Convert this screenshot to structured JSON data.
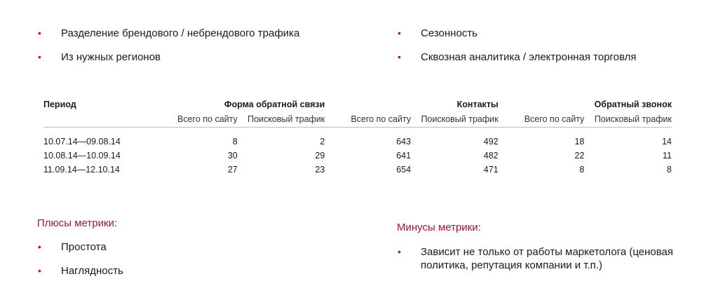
{
  "top_left_bullets": [
    "Разделение брендового / небрендового трафика",
    "Из нужных регионов"
  ],
  "top_right_bullets": [
    "Сезонность",
    "Сквозная аналитика / электронная торговля"
  ],
  "table": {
    "period_header": "Период",
    "groups": [
      "Форма обратной связи",
      "Контакты",
      "Обратный звонок"
    ],
    "sub_headers": [
      "Всего по сайту",
      "Поисковый трафик",
      "Всего по сайту",
      "Поисковый трафик",
      "Всего по сайту",
      "Поисковый трафик"
    ],
    "rows": [
      {
        "period": "10.07.14—09.08.14",
        "values": [
          "8",
          "2",
          "643",
          "492",
          "18",
          "14"
        ]
      },
      {
        "period": "10.08.14—10.09.14",
        "values": [
          "30",
          "29",
          "641",
          "482",
          "22",
          "11"
        ]
      },
      {
        "period": "11.09.14—12.10.14",
        "values": [
          "27",
          "23",
          "654",
          "471",
          "8",
          "8"
        ]
      }
    ]
  },
  "pros": {
    "title": "Плюсы метрики:",
    "items": [
      "Простота",
      "Наглядность"
    ]
  },
  "cons": {
    "title": "Минусы метрики:",
    "items": [
      "Зависит не только от работы маркетолога (ценовая политика, репутация компании и т.п.)"
    ]
  },
  "bullet_char": "•",
  "colors": {
    "accent": "#a3172c",
    "bullet": "#b8102a",
    "text": "#1a1a1a",
    "rule": "#bdbdbd"
  }
}
